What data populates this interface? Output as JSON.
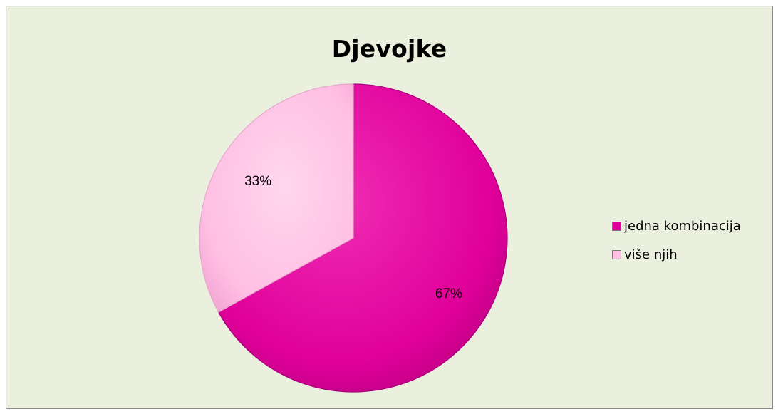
{
  "chart_data": {
    "type": "pie",
    "title": "Djevojke",
    "categories": [
      "jedna kombinacija",
      "više njih"
    ],
    "values": [
      67,
      33
    ],
    "data_labels": [
      "67%",
      "33%"
    ],
    "colors": [
      "#e0009a",
      "#ffbfe3"
    ],
    "legend_position": "right",
    "start_angle_deg": 0,
    "direction": "clockwise"
  }
}
